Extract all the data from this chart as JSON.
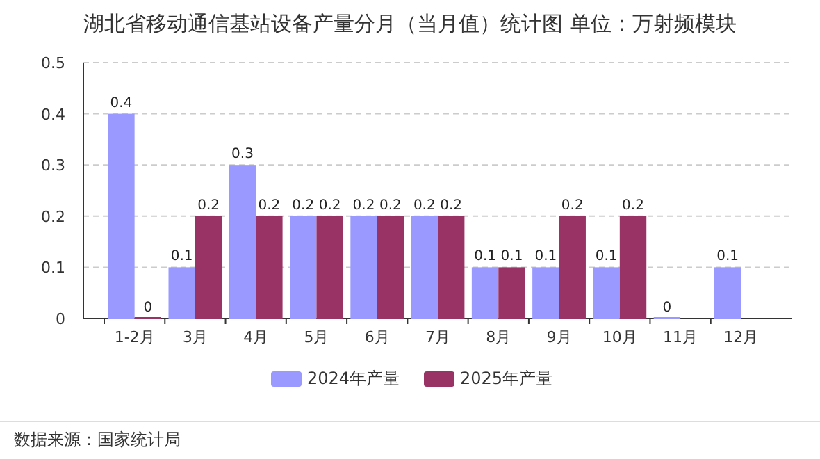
{
  "chart_data": {
    "type": "bar",
    "title": "湖北省移动通信基站设备产量分月（当月值）统计图 单位：万射频模块",
    "categories": [
      "1-2月",
      "3月",
      "4月",
      "5月",
      "6月",
      "7月",
      "8月",
      "9月",
      "10月",
      "11月",
      "12月"
    ],
    "series": [
      {
        "name": "2024年产量",
        "color": "#9999ff",
        "values": [
          0.4,
          0.1,
          0.3,
          0.2,
          0.2,
          0.2,
          0.1,
          0.1,
          0.1,
          0,
          0.1
        ]
      },
      {
        "name": "2025年产量",
        "color": "#993366",
        "values": [
          0,
          0.2,
          0.2,
          0.2,
          0.2,
          0.2,
          0.1,
          0.2,
          0.2,
          null,
          null
        ]
      }
    ],
    "ylim": [
      0,
      0.5
    ],
    "yticks": [
      0,
      0.1,
      0.2,
      0.3,
      0.4,
      0.5
    ],
    "grid": "y",
    "legend": "bottom",
    "data_labels": true,
    "annotations": [
      "数据来源：国家统计局"
    ]
  }
}
